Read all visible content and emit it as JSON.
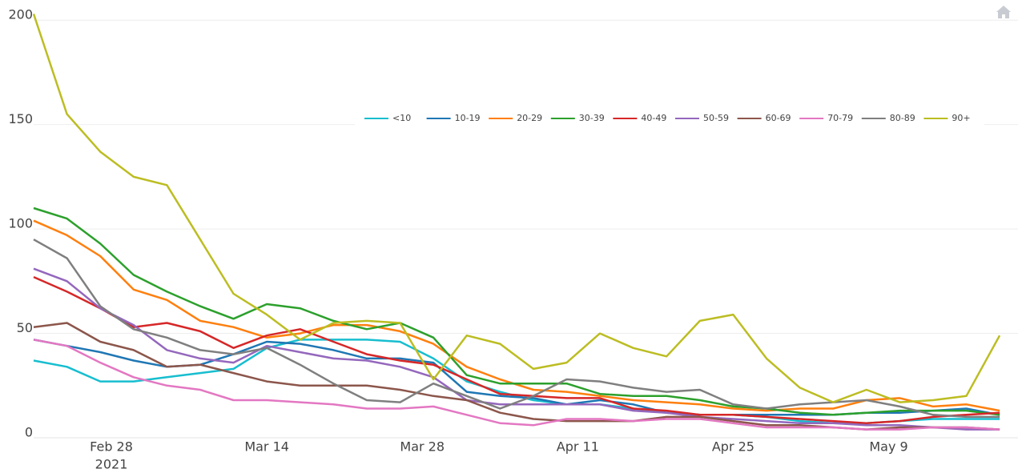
{
  "chart_data": {
    "type": "line",
    "x": [
      "2021-02-21",
      "2021-02-24",
      "2021-02-27",
      "2021-03-02",
      "2021-03-05",
      "2021-03-08",
      "2021-03-11",
      "2021-03-14",
      "2021-03-17",
      "2021-03-20",
      "2021-03-23",
      "2021-03-26",
      "2021-03-29",
      "2021-04-01",
      "2021-04-04",
      "2021-04-07",
      "2021-04-10",
      "2021-04-13",
      "2021-04-16",
      "2021-04-19",
      "2021-04-22",
      "2021-04-25",
      "2021-04-28",
      "2021-05-01",
      "2021-05-04",
      "2021-05-07",
      "2021-05-10",
      "2021-05-13",
      "2021-05-16",
      "2021-05-19"
    ],
    "series": [
      {
        "name": "<10",
        "color": "#17becf",
        "values": [
          37,
          34,
          27,
          27,
          29,
          31,
          33,
          43,
          47,
          47,
          47,
          46,
          38,
          27,
          22,
          18,
          16,
          16,
          14,
          12,
          11,
          11,
          10,
          8,
          7,
          7,
          8,
          9,
          9,
          9
        ]
      },
      {
        "name": "10-19",
        "color": "#1f77b4",
        "values": [
          47,
          44,
          41,
          37,
          34,
          35,
          40,
          46,
          45,
          42,
          38,
          38,
          36,
          22,
          20,
          19,
          16,
          18,
          16,
          12,
          11,
          11,
          11,
          11,
          11,
          12,
          12,
          13,
          14,
          11
        ]
      },
      {
        "name": "20-29",
        "color": "#ff7f0e",
        "values": [
          104,
          97,
          87,
          71,
          66,
          56,
          53,
          48,
          50,
          54,
          54,
          51,
          45,
          34,
          28,
          23,
          22,
          20,
          18,
          17,
          16,
          14,
          13,
          14,
          14,
          18,
          19,
          15,
          16,
          13
        ]
      },
      {
        "name": "30-39",
        "color": "#2ca02c",
        "values": [
          110,
          105,
          93,
          78,
          70,
          63,
          57,
          64,
          62,
          56,
          52,
          55,
          48,
          30,
          26,
          26,
          26,
          21,
          20,
          20,
          18,
          15,
          14,
          12,
          11,
          12,
          13,
          13,
          13,
          11
        ]
      },
      {
        "name": "40-49",
        "color": "#d62728",
        "values": [
          77,
          70,
          62,
          53,
          55,
          51,
          43,
          49,
          52,
          46,
          40,
          37,
          35,
          28,
          21,
          20,
          19,
          19,
          14,
          13,
          11,
          11,
          10,
          9,
          8,
          7,
          8,
          10,
          11,
          12
        ]
      },
      {
        "name": "50-59",
        "color": "#9467bd",
        "values": [
          81,
          75,
          62,
          54,
          42,
          38,
          36,
          44,
          41,
          38,
          37,
          34,
          29,
          18,
          16,
          16,
          16,
          16,
          13,
          12,
          10,
          9,
          8,
          7,
          7,
          6,
          6,
          5,
          4,
          4
        ]
      },
      {
        "name": "60-69",
        "color": "#8c564b",
        "values": [
          53,
          55,
          46,
          42,
          34,
          35,
          31,
          27,
          25,
          25,
          25,
          23,
          20,
          18,
          12,
          9,
          8,
          8,
          8,
          10,
          10,
          8,
          6,
          6,
          5,
          4,
          5,
          5,
          5,
          4
        ]
      },
      {
        "name": "70-79",
        "color": "#e377c2",
        "values": [
          47,
          44,
          36,
          29,
          25,
          23,
          18,
          18,
          17,
          16,
          14,
          14,
          15,
          11,
          7,
          6,
          9,
          9,
          8,
          9,
          9,
          7,
          5,
          5,
          5,
          4,
          4,
          5,
          5,
          4
        ]
      },
      {
        "name": "80-89",
        "color": "#7f7f7f",
        "values": [
          95,
          86,
          63,
          52,
          48,
          42,
          40,
          43,
          35,
          26,
          18,
          17,
          26,
          20,
          14,
          20,
          28,
          27,
          24,
          22,
          23,
          16,
          14,
          16,
          17,
          18,
          15,
          11,
          10,
          10
        ]
      },
      {
        "name": "90+",
        "color": "#bcbd22",
        "values": [
          203,
          155,
          137,
          125,
          121,
          95,
          69,
          59,
          47,
          55,
          56,
          55,
          28,
          49,
          45,
          33,
          36,
          50,
          43,
          39,
          56,
          59,
          38,
          24,
          17,
          23,
          17,
          18,
          20,
          49
        ]
      }
    ],
    "xlim": [
      "2021-02-21",
      "2021-05-20"
    ],
    "xticks": [
      {
        "value": "2021-02-28",
        "label": "Feb 28"
      },
      {
        "value": "2021-03-14",
        "label": "Mar 14"
      },
      {
        "value": "2021-03-28",
        "label": "Mar 28"
      },
      {
        "value": "2021-04-11",
        "label": "Apr 11"
      },
      {
        "value": "2021-04-25",
        "label": "Apr 25"
      },
      {
        "value": "2021-05-09",
        "label": "May 9"
      }
    ],
    "x_year_label": "2021",
    "ylim": [
      0,
      202
    ],
    "yticks": [
      0,
      50,
      100,
      150,
      200
    ],
    "grid": true,
    "legend": "inside-top"
  }
}
